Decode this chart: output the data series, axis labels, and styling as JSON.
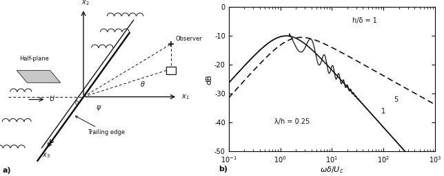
{
  "title_a": "a)",
  "title_b": "b)",
  "xlabel": "ωδ/U_c",
  "ylabel": "dB",
  "ylim": [
    -50,
    0
  ],
  "yticks": [
    0,
    -10,
    -20,
    -30,
    -40,
    -50
  ],
  "annotation_h": "h/δ = 1",
  "annotation_lambda": "λ/h = 0.25",
  "label_1": "1",
  "label_5": "5",
  "background_color": "#ffffff",
  "line_color": "#111111"
}
